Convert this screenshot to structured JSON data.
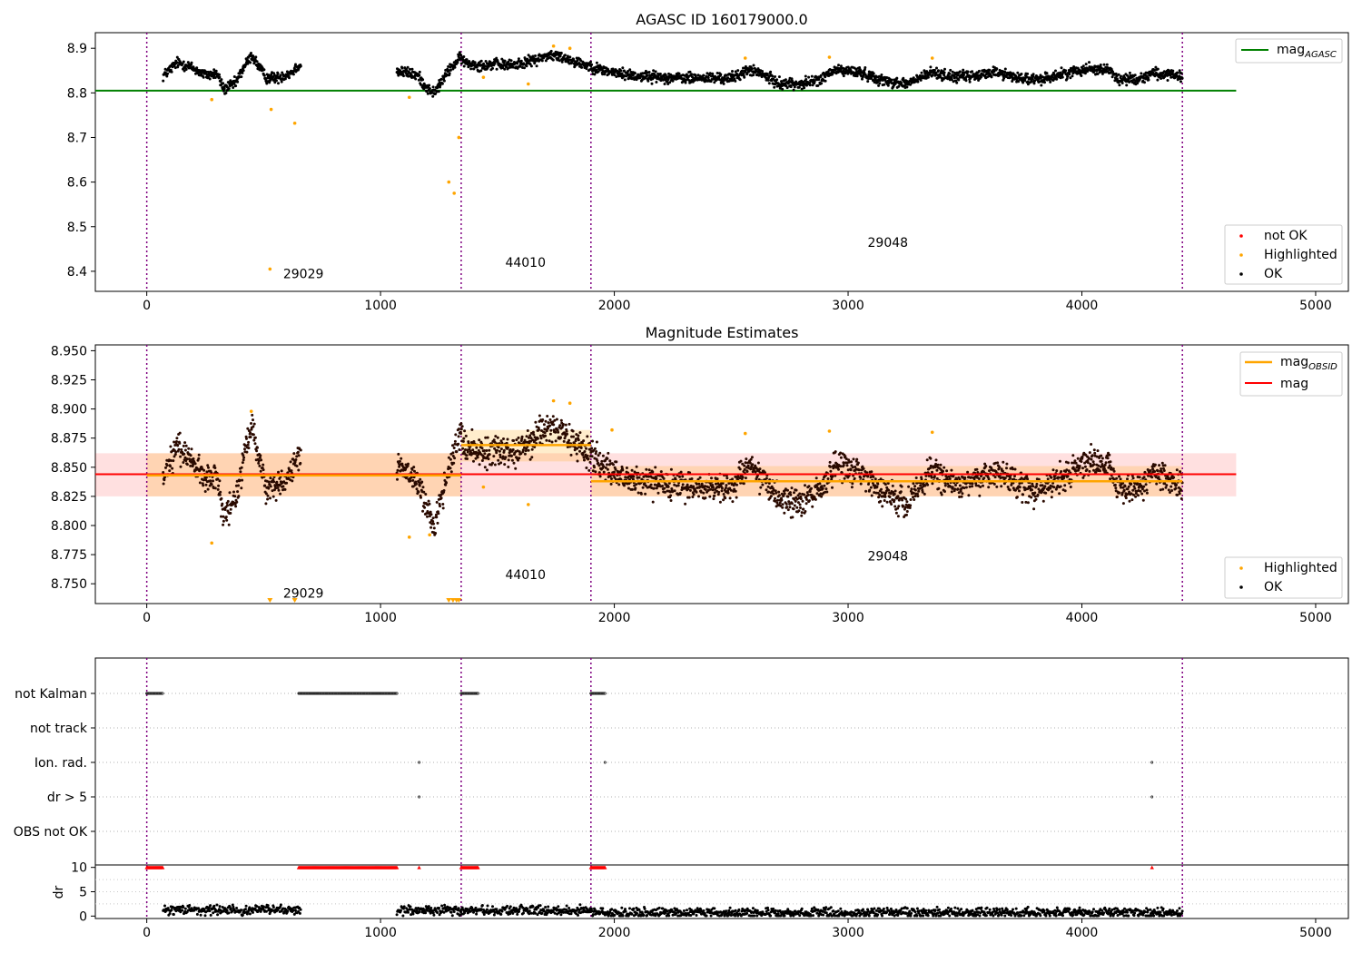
{
  "chart_data": [
    {
      "type": "scatter",
      "title": "AGASC ID 160179000.0",
      "xlim": [
        -220,
        5140
      ],
      "ylim": [
        8.355,
        8.935
      ],
      "x_ticks": [
        0,
        1000,
        2000,
        3000,
        4000,
        5000
      ],
      "y_ticks": [
        8.4,
        8.5,
        8.6,
        8.7,
        8.8,
        8.9
      ],
      "obs_boundaries": [
        0,
        1345,
        1900,
        4430
      ],
      "obs_labels": [
        {
          "text": "29029",
          "x": 670,
          "y": 8.385
        },
        {
          "text": "44010",
          "x": 1620,
          "y": 8.41
        },
        {
          "text": "29048",
          "x": 3170,
          "y": 8.455
        }
      ],
      "hlines": [
        {
          "name": "mag_AGASC",
          "y": 8.805,
          "x": [
            0,
            4660
          ],
          "color": "#008000"
        }
      ],
      "legend_line": {
        "label": "mag",
        "sub": "AGASC",
        "color": "#008000"
      },
      "legend_points": [
        {
          "label": "not OK",
          "color": "#ff0000"
        },
        {
          "label": "Highlighted",
          "color": "#ffa500"
        },
        {
          "label": "OK",
          "color": "#000000"
        }
      ],
      "highlighted": [
        [
          278,
          8.785
        ],
        [
          527,
          8.405
        ],
        [
          532,
          8.763
        ],
        [
          633,
          8.732
        ],
        [
          1123,
          8.79
        ],
        [
          1292,
          8.6
        ],
        [
          1315,
          8.575
        ],
        [
          1335,
          8.7
        ],
        [
          1440,
          8.835
        ],
        [
          1632,
          8.82
        ],
        [
          1740,
          8.905
        ],
        [
          1810,
          8.9
        ],
        [
          2560,
          8.878
        ],
        [
          2920,
          8.88
        ],
        [
          3360,
          8.878
        ]
      ]
    },
    {
      "type": "scatter",
      "title": "Magnitude Estimates",
      "xlim": [
        -220,
        5140
      ],
      "ylim": [
        8.733,
        8.955
      ],
      "x_ticks": [
        0,
        1000,
        2000,
        3000,
        4000,
        5000
      ],
      "y_ticks": [
        8.75,
        8.775,
        8.8,
        8.825,
        8.85,
        8.875,
        8.9,
        8.925,
        8.95
      ],
      "y_tick_labels": [
        "8.750",
        "8.775",
        "8.800",
        "8.825",
        "8.850",
        "8.875",
        "8.900",
        "8.925",
        "8.950"
      ],
      "obs_boundaries": [
        0,
        1345,
        1900,
        4430
      ],
      "obs_labels": [
        {
          "text": "29029",
          "x": 670,
          "y": 8.738
        },
        {
          "text": "44010",
          "x": 1620,
          "y": 8.754
        },
        {
          "text": "29048",
          "x": 3170,
          "y": 8.77
        }
      ],
      "mag": {
        "y": 8.844,
        "lo": 8.825,
        "hi": 8.862,
        "x": [
          -220,
          4660
        ]
      },
      "obsid_mags": [
        {
          "x": [
            0,
            1345
          ],
          "y": 8.843,
          "lo": 8.825,
          "hi": 8.862
        },
        {
          "x": [
            1345,
            1900
          ],
          "y": 8.869,
          "lo": 8.855,
          "hi": 8.882
        },
        {
          "x": [
            1900,
            4430
          ],
          "y": 8.838,
          "lo": 8.825,
          "hi": 8.851
        }
      ],
      "legend_lines": [
        {
          "label": "mag",
          "sub": "OBSID",
          "color": "#ffa500"
        },
        {
          "label": "mag",
          "sub": "",
          "color": "#ff0000"
        }
      ],
      "legend_points": [
        {
          "label": "Highlighted",
          "color": "#ffa500"
        },
        {
          "label": "OK",
          "color": "#000000"
        }
      ],
      "highlighted": [
        [
          278,
          8.785
        ],
        [
          447,
          8.898
        ],
        [
          1123,
          8.79
        ],
        [
          1210,
          8.792
        ],
        [
          1440,
          8.833
        ],
        [
          1632,
          8.818
        ],
        [
          1740,
          8.907
        ],
        [
          1810,
          8.905
        ],
        [
          1990,
          8.882
        ],
        [
          2560,
          8.879
        ],
        [
          2920,
          8.881
        ],
        [
          3360,
          8.88
        ]
      ],
      "clipped_low": [
        527,
        633,
        1292,
        1310,
        1325,
        1335
      ]
    },
    {
      "type": "scatter",
      "xlim": [
        -220,
        5140
      ],
      "x_ticks": [
        0,
        1000,
        2000,
        3000,
        4000,
        5000
      ],
      "categories": [
        "not Kalman",
        "not track",
        "Ion. rad.",
        "dr > 5",
        "OBS not OK"
      ],
      "obs_boundaries": [
        0,
        1345,
        1900,
        4430
      ],
      "flags": {
        "not Kalman": [
          [
            0,
            70
          ],
          [
            650,
            1070
          ],
          [
            1345,
            1420
          ],
          [
            1900,
            1960
          ]
        ],
        "not track": [],
        "Ion. rad.": [
          [
            1165,
            1165
          ],
          [
            1960,
            1960
          ],
          [
            4300,
            4300
          ]
        ],
        "dr > 5": [
          [
            1165,
            1165
          ],
          [
            4300,
            4300
          ]
        ],
        "OBS not OK": []
      },
      "dr_ylabel": "dr",
      "dr_ylim": [
        -0.5,
        10.5
      ],
      "dr_ticks": [
        0,
        5,
        10
      ],
      "dr_clipped": [
        [
          0,
          70
        ],
        [
          650,
          1070
        ],
        [
          1165,
          1165
        ],
        [
          1345,
          1420
        ],
        [
          1900,
          1960
        ],
        [
          4300,
          4300
        ]
      ]
    }
  ],
  "colors": {
    "ok": "#000000",
    "highlighted": "#ffa500",
    "not_ok": "#ff0000",
    "boundary": "#800080",
    "agasc": "#008000",
    "mag": "#ff0000",
    "obsid": "#ffa500"
  }
}
